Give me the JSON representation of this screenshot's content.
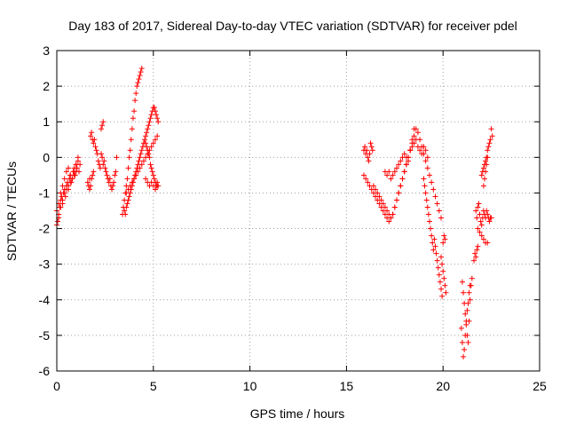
{
  "chart_data": {
    "type": "scatter",
    "title": "Day 183 of 2017, Sidereal Day-to-day VTEC variation (SDTVAR) for receiver pdel",
    "xlabel": "GPS time / hours",
    "ylabel": "SDTVAR / TECUs",
    "xlim": [
      0,
      25
    ],
    "ylim": [
      -6,
      3
    ],
    "grid": true,
    "marker": "+",
    "color": "#ff0000",
    "x_ticks": [
      0,
      5,
      10,
      15,
      20,
      25
    ],
    "y_ticks": [
      -6,
      -5,
      -4,
      -3,
      -2,
      -1,
      0,
      1,
      2,
      3
    ],
    "series": [
      {
        "x": [
          0.0,
          0.05,
          0.1,
          0.15,
          0.2,
          0.25,
          0.3,
          0.35,
          0.4,
          0.45,
          0.5,
          0.55,
          0.6,
          0.65,
          0.7,
          0.75,
          0.8,
          0.85,
          0.9,
          0.95,
          1.0,
          1.05,
          1.1,
          1.15,
          1.2,
          0.1,
          0.2,
          0.3,
          0.4,
          0.5,
          0.6,
          0.7,
          0.8,
          0.9,
          1.0,
          1.1,
          0.0,
          0.1,
          0.2,
          0.3,
          0.4,
          0.5,
          0.6,
          0.7,
          0.8,
          0.9,
          1.0,
          1.6,
          1.65,
          1.7,
          1.75,
          1.8,
          1.85,
          1.9,
          1.95,
          2.0,
          2.05,
          2.1,
          2.15,
          2.2,
          2.25,
          2.3,
          2.35,
          2.4,
          2.45,
          2.5,
          2.55,
          2.6,
          2.65,
          2.7,
          2.75,
          2.8,
          2.85,
          2.9,
          2.95,
          3.0,
          3.05,
          3.1,
          2.3,
          2.35,
          2.4,
          1.7,
          1.75,
          1.8,
          1.85,
          1.9,
          3.4,
          3.45,
          3.5,
          3.55,
          3.6,
          3.65,
          3.7,
          3.75,
          3.8,
          3.85,
          3.9,
          3.95,
          4.0,
          4.05,
          4.1,
          4.15,
          4.2,
          4.25,
          4.3,
          4.35,
          4.4,
          3.5,
          3.55,
          3.6,
          3.65,
          3.7,
          3.75,
          3.8,
          3.85,
          3.9,
          3.95,
          4.0,
          4.05,
          4.1,
          4.15,
          4.2,
          4.25,
          4.3,
          4.35,
          4.4,
          4.45,
          4.5,
          4.55,
          4.6,
          4.65,
          4.7,
          4.75,
          4.8,
          4.85,
          4.9,
          4.95,
          5.0,
          5.05,
          5.1,
          5.15,
          5.2,
          5.25,
          3.6,
          3.7,
          3.8,
          3.9,
          4.0,
          4.1,
          4.2,
          4.3,
          4.4,
          4.5,
          4.6,
          4.7,
          4.8,
          4.9,
          5.0,
          5.1,
          5.2,
          4.6,
          4.65,
          4.7,
          4.75,
          4.8,
          4.85,
          4.9,
          4.95,
          5.0,
          5.05,
          5.1,
          5.15,
          5.2,
          5.25,
          4.6,
          4.7,
          4.8,
          4.9,
          5.0,
          5.1,
          5.2,
          15.9,
          15.95,
          16.0,
          16.05,
          16.1,
          16.15,
          16.2,
          16.25,
          16.3,
          16.35,
          15.9,
          16.0,
          16.1,
          16.2,
          16.3,
          16.4,
          16.5,
          16.6,
          16.7,
          16.8,
          16.9,
          17.0,
          17.1,
          17.2,
          17.3,
          17.4,
          17.5,
          17.6,
          17.7,
          17.8,
          17.9,
          18.0,
          18.1,
          18.2,
          18.3,
          18.4,
          18.5,
          18.6,
          18.7,
          18.8,
          18.9,
          19.0,
          19.1,
          19.2,
          19.3,
          19.4,
          19.5,
          19.6,
          19.7,
          19.8,
          19.9,
          16.4,
          16.5,
          16.6,
          16.7,
          16.8,
          16.9,
          17.0,
          17.1,
          17.2,
          17.3,
          17.4,
          17.5,
          17.6,
          17.7,
          17.8,
          17.9,
          18.0,
          18.1,
          18.2,
          18.3,
          18.4,
          18.5,
          17.0,
          17.1,
          17.2,
          17.3,
          17.4,
          17.5,
          17.6,
          17.7,
          17.8,
          17.9,
          18.0,
          18.1,
          18.2,
          18.3,
          18.4,
          18.5,
          18.6,
          18.7,
          18.8,
          18.9,
          19.0,
          19.1,
          19.2,
          19.0,
          19.05,
          19.1,
          19.15,
          19.2,
          19.25,
          19.3,
          19.35,
          19.4,
          19.45,
          19.5,
          19.55,
          19.6,
          19.65,
          19.7,
          19.75,
          19.8,
          19.85,
          19.9,
          19.95,
          20.0,
          20.05,
          20.1,
          19.9,
          19.95,
          20.0,
          20.05,
          20.1,
          20.15,
          21.0,
          21.05,
          21.1,
          21.15,
          21.2,
          21.25,
          21.3,
          21.35,
          21.4,
          21.45,
          21.5,
          20.95,
          21.0,
          21.05,
          21.1,
          21.15,
          21.2,
          21.25,
          21.3,
          21.35,
          21.4,
          21.6,
          21.65,
          21.7,
          21.75,
          21.8,
          21.7,
          21.75,
          21.8,
          21.85,
          21.9,
          21.95,
          22.0,
          22.05,
          22.1,
          22.15,
          22.2,
          22.25,
          22.3,
          22.35,
          22.4,
          22.45,
          22.5,
          21.8,
          21.9,
          22.0,
          22.1,
          22.2,
          22.3,
          22.0,
          22.05,
          22.1,
          22.15,
          22.2,
          22.25,
          22.3,
          22.35,
          22.4,
          22.45,
          22.1,
          22.15,
          22.2,
          22.25,
          22.3,
          22.5,
          22.55
        ],
        "y": [
          -1.5,
          -1.8,
          -1.7,
          -1.4,
          -1.2,
          -1.1,
          -1.3,
          -1.0,
          -0.9,
          -1.1,
          -0.8,
          -0.7,
          -0.9,
          -0.6,
          -0.5,
          -0.7,
          -0.6,
          -0.4,
          -0.3,
          -0.5,
          -0.2,
          -0.3,
          -0.1,
          -0.4,
          -0.2,
          -1.3,
          -1.0,
          -0.8,
          -0.6,
          -0.4,
          -0.3,
          -0.5,
          -0.6,
          -0.4,
          -0.2,
          0.0,
          -1.9,
          -1.6,
          -1.4,
          -1.2,
          -1.0,
          -0.9,
          -0.8,
          -0.7,
          -0.6,
          -0.5,
          -0.4,
          -0.7,
          -0.8,
          -0.6,
          0.6,
          0.7,
          0.5,
          0.4,
          0.5,
          0.3,
          0.2,
          0.1,
          -0.1,
          -0.2,
          -0.3,
          0.1,
          0.0,
          -0.2,
          -0.1,
          -0.3,
          -0.4,
          -0.5,
          -0.6,
          -0.7,
          -0.6,
          -0.8,
          -0.9,
          -0.8,
          -0.7,
          -0.5,
          -0.4,
          0.0,
          0.8,
          0.9,
          1.0,
          -0.9,
          -0.8,
          -0.6,
          -0.5,
          -0.4,
          -1.6,
          -1.4,
          -1.2,
          -1.0,
          -0.8,
          -0.6,
          -0.3,
          0.0,
          0.2,
          0.5,
          0.8,
          1.1,
          1.3,
          1.6,
          1.8,
          2.0,
          2.1,
          2.2,
          2.3,
          2.4,
          2.5,
          -1.5,
          -1.6,
          -1.4,
          -1.3,
          -1.2,
          -1.1,
          -1.0,
          -0.9,
          -0.8,
          -0.7,
          -0.6,
          -0.5,
          -0.4,
          -0.3,
          -0.2,
          -0.1,
          0.0,
          0.1,
          0.2,
          0.3,
          0.4,
          0.5,
          0.6,
          0.7,
          0.8,
          0.9,
          1.0,
          1.1,
          1.2,
          1.3,
          1.4,
          1.4,
          1.3,
          1.2,
          1.1,
          1.0,
          -1.0,
          -0.9,
          -0.8,
          -0.7,
          -0.6,
          -0.5,
          -0.4,
          -0.3,
          -0.2,
          -0.1,
          0.0,
          0.1,
          0.2,
          0.3,
          0.4,
          0.5,
          0.6,
          0.4,
          0.3,
          0.2,
          0.1,
          0.0,
          -0.2,
          -0.3,
          -0.4,
          -0.5,
          -0.6,
          -0.7,
          -0.8,
          -0.7,
          -0.8,
          -0.6,
          -0.7,
          -0.8,
          -0.7,
          -0.8,
          -0.9,
          -0.8,
          0.2,
          0.3,
          0.1,
          0.2,
          0.0,
          -0.1,
          0.1,
          0.4,
          0.3,
          0.2,
          -0.5,
          -0.6,
          -0.7,
          -0.8,
          -0.9,
          -1.0,
          -1.1,
          -1.2,
          -1.3,
          -1.4,
          -1.5,
          -1.6,
          -1.7,
          -1.8,
          -1.7,
          -1.6,
          -1.4,
          -1.2,
          -1.0,
          -0.8,
          -0.6,
          -0.4,
          -0.2,
          0.0,
          0.2,
          0.4,
          0.6,
          0.8,
          0.7,
          0.5,
          0.3,
          0.1,
          -0.1,
          -0.3,
          -0.5,
          -0.7,
          -0.9,
          -1.1,
          -1.3,
          -1.5,
          -1.7,
          -0.8,
          -0.9,
          -1.0,
          -1.1,
          -1.2,
          -1.3,
          -1.4,
          -1.5,
          -1.6,
          -1.7,
          -1.6,
          -1.4,
          -1.2,
          -1.0,
          -0.8,
          -0.6,
          -0.4,
          -0.2,
          0.0,
          0.2,
          0.5,
          0.8,
          -0.4,
          -0.5,
          -0.4,
          -0.6,
          -0.5,
          -0.4,
          -0.3,
          -0.2,
          -0.1,
          0.0,
          0.1,
          0.0,
          -0.1,
          0.2,
          0.3,
          0.4,
          0.5,
          0.3,
          0.2,
          0.1,
          0.3,
          0.2,
          0.0,
          -0.6,
          -0.8,
          -1.0,
          -1.2,
          -1.4,
          -1.6,
          -1.8,
          -2.0,
          -2.2,
          -2.4,
          -2.6,
          -2.3,
          -2.5,
          -2.7,
          -2.9,
          -3.1,
          -3.3,
          -3.5,
          -3.7,
          -3.9,
          -2.4,
          -2.2,
          -2.3,
          -2.8,
          -3.0,
          -3.2,
          -3.4,
          -3.6,
          -3.8,
          -3.5,
          -3.8,
          -4.1,
          -4.4,
          -4.7,
          -5.0,
          -5.2,
          -4.6,
          -4.0,
          -3.6,
          -3.4,
          -4.8,
          -5.2,
          -5.6,
          -5.4,
          -5.0,
          -4.6,
          -4.3,
          -4.1,
          -3.8,
          -3.6,
          -2.9,
          -2.7,
          -2.8,
          -2.6,
          -2.5,
          -1.5,
          -1.7,
          -1.4,
          -1.3,
          -1.6,
          -1.8,
          -1.9,
          -1.7,
          -1.5,
          -1.6,
          -1.7,
          -1.5,
          -1.6,
          -1.7,
          -1.8,
          -1.7,
          -1.7,
          -2.0,
          -2.1,
          -2.2,
          -2.3,
          -2.4,
          -2.4,
          -0.5,
          -0.4,
          -0.3,
          -0.2,
          -0.1,
          0.0,
          0.2,
          0.3,
          0.4,
          0.5,
          -0.8,
          -0.6,
          -0.4,
          -0.2,
          0.0,
          0.8,
          0.6
        ]
      }
    ]
  }
}
